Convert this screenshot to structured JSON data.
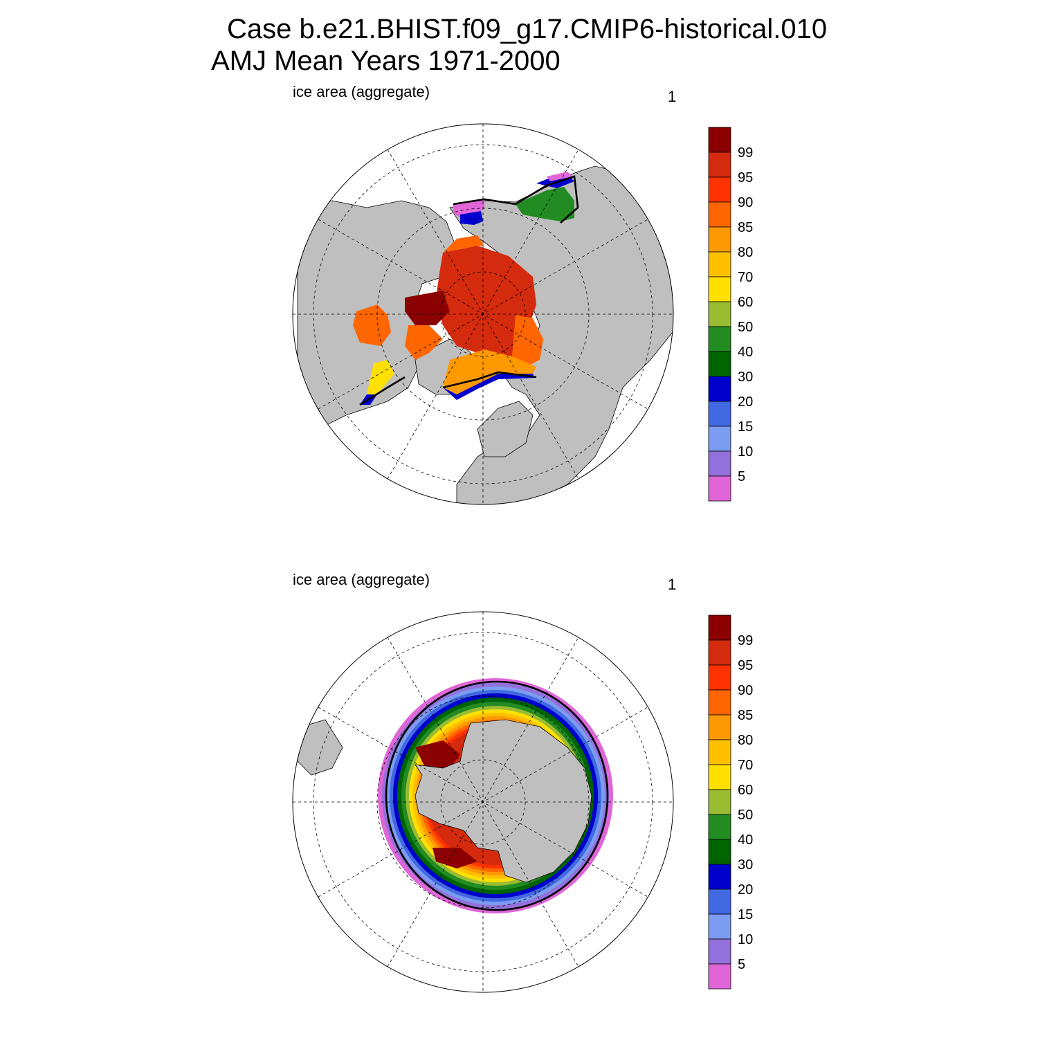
{
  "title": {
    "line1": "Case b.e21.BHIST.f09_g17.CMIP6-historical.010",
    "line2": "AMJ Mean   Years 1971-2000"
  },
  "panels": [
    {
      "id": "north",
      "label": "ice area  (aggregate)",
      "units": "1"
    },
    {
      "id": "south",
      "label": "ice area  (aggregate)",
      "units": "1"
    }
  ],
  "colorbar": {
    "labels": [
      "99",
      "95",
      "90",
      "85",
      "80",
      "70",
      "60",
      "50",
      "40",
      "30",
      "20",
      "15",
      "10",
      "5"
    ],
    "colors": [
      "#8b0000",
      "#d42a0e",
      "#ff3300",
      "#ff6600",
      "#ff9900",
      "#ffc000",
      "#ffe000",
      "#9abc32",
      "#228b22",
      "#006400",
      "#0000cd",
      "#4169e1",
      "#7b9cf0",
      "#9370db",
      "#e066d8"
    ]
  },
  "colors": {
    "land": "#bfbfbf",
    "ocean": "#ffffff",
    "edge_line": "#000000"
  }
}
